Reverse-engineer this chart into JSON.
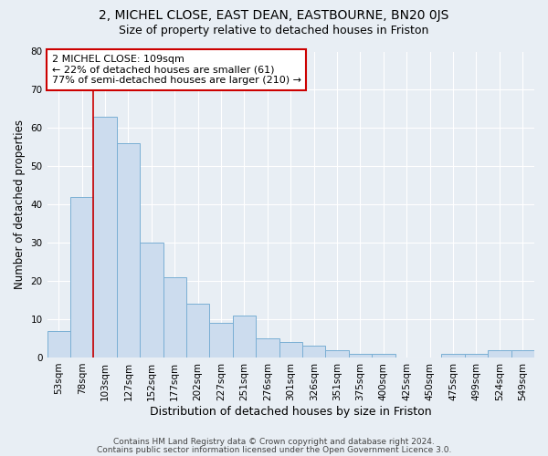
{
  "title_line1": "2, MICHEL CLOSE, EAST DEAN, EASTBOURNE, BN20 0JS",
  "title_line2": "Size of property relative to detached houses in Friston",
  "xlabel": "Distribution of detached houses by size in Friston",
  "ylabel": "Number of detached properties",
  "categories": [
    "53sqm",
    "78sqm",
    "103sqm",
    "127sqm",
    "152sqm",
    "177sqm",
    "202sqm",
    "227sqm",
    "251sqm",
    "276sqm",
    "301sqm",
    "326sqm",
    "351sqm",
    "375sqm",
    "400sqm",
    "425sqm",
    "450sqm",
    "475sqm",
    "499sqm",
    "524sqm",
    "549sqm"
  ],
  "values": [
    7,
    42,
    63,
    56,
    30,
    21,
    14,
    9,
    11,
    5,
    4,
    3,
    2,
    1,
    1,
    0,
    0,
    1,
    1,
    2,
    2
  ],
  "bar_color": "#ccdcee",
  "bar_edgecolor": "#7aafd4",
  "bar_linewidth": 0.7,
  "vline_x": 2,
  "vline_color": "#cc0000",
  "vline_linewidth": 1.2,
  "annotation_text": "2 MICHEL CLOSE: 109sqm\n← 22% of detached houses are smaller (61)\n77% of semi-detached houses are larger (210) →",
  "annotation_box_edgecolor": "#cc0000",
  "annotation_box_facecolor": "#ffffff",
  "ylim": [
    0,
    80
  ],
  "yticks": [
    0,
    10,
    20,
    30,
    40,
    50,
    60,
    70,
    80
  ],
  "footer_line1": "Contains HM Land Registry data © Crown copyright and database right 2024.",
  "footer_line2": "Contains public sector information licensed under the Open Government Licence 3.0.",
  "background_color": "#e8eef4",
  "plot_background_color": "#e8eef4",
  "grid_color": "#ffffff",
  "title1_fontsize": 10,
  "title2_fontsize": 9,
  "xlabel_fontsize": 9,
  "ylabel_fontsize": 8.5,
  "tick_fontsize": 7.5,
  "annotation_fontsize": 8,
  "footer_fontsize": 6.5
}
